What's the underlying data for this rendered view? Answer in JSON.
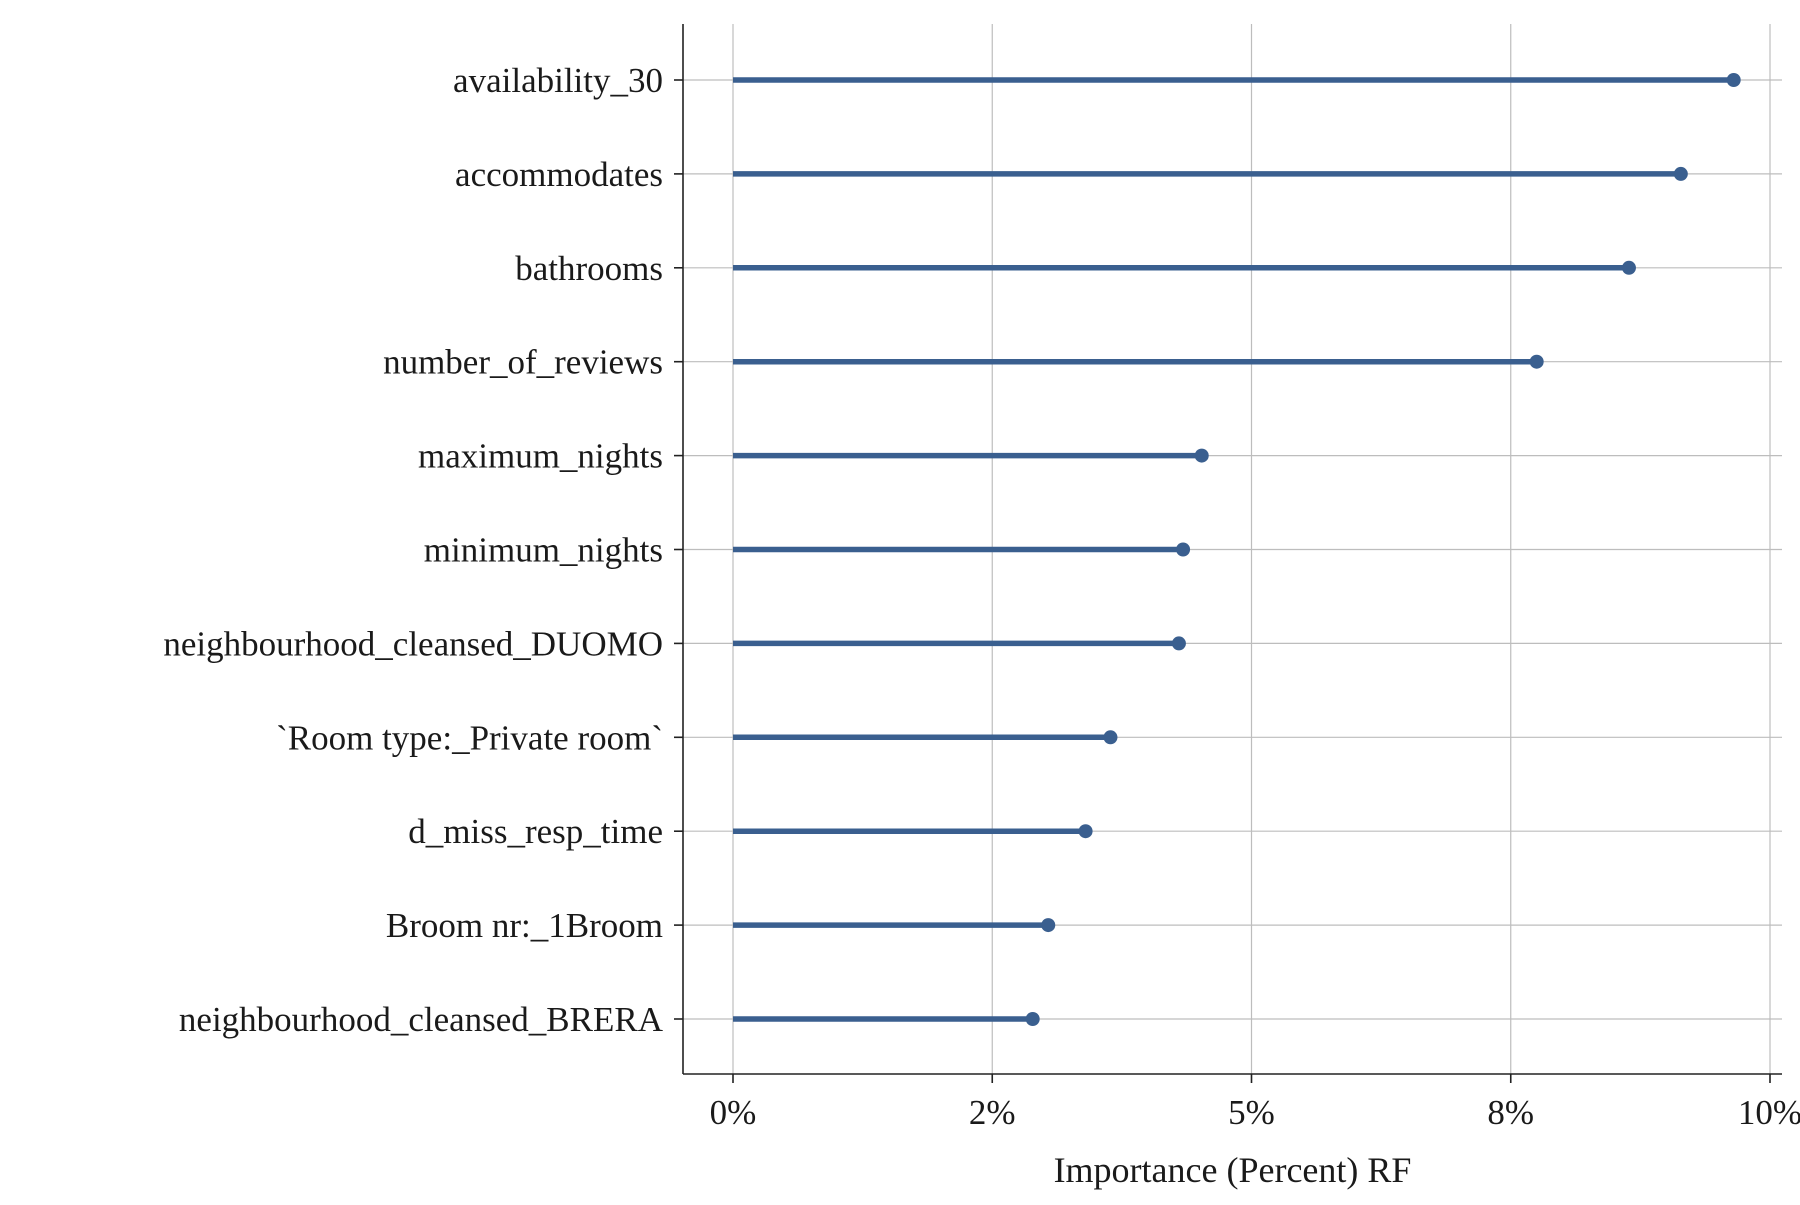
{
  "chart_data": {
    "type": "lollipop",
    "title": "",
    "xlabel": "Importance (Percent) RF",
    "ylabel": "",
    "xlim": [
      0,
      0.1
    ],
    "x_ticks": [
      0,
      0.025,
      0.05,
      0.075,
      0.1
    ],
    "x_tick_labels": [
      "0%",
      "2%",
      "5%",
      "8%",
      "10%"
    ],
    "grid": true,
    "categories": [
      "availability_30",
      "accommodates",
      "bathrooms",
      "number_of_reviews",
      "maximum_nights",
      "minimum_nights",
      "neighbourhood_cleansed_DUOMO",
      "`Room type:_Private room`",
      "d_miss_resp_time",
      "Broom nr:_1Broom",
      "neighbourhood_cleansed_BRERA"
    ],
    "values": [
      0.0965,
      0.0914,
      0.0864,
      0.0775,
      0.0452,
      0.0434,
      0.043,
      0.0364,
      0.034,
      0.0304,
      0.0289
    ],
    "color": "#3a5f8f"
  }
}
